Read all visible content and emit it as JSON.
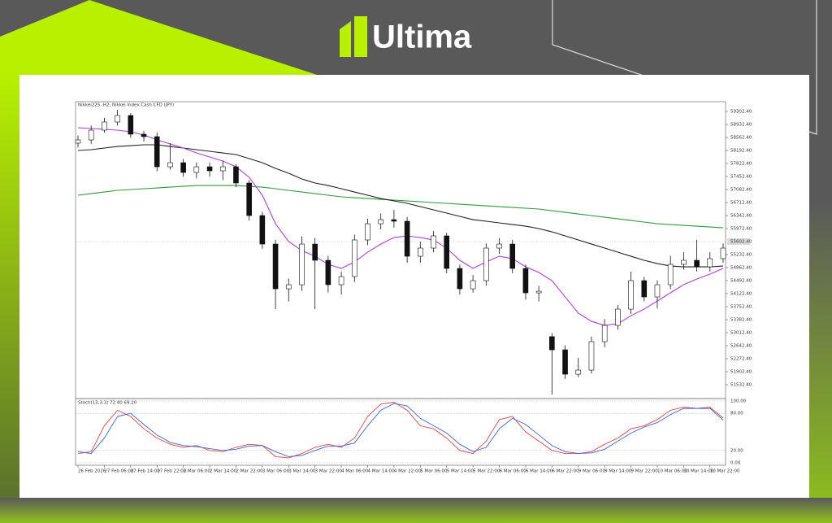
{
  "brand": "Ultima",
  "chart_data": {
    "type": "candlestick",
    "title": "Nikkei225, H2: Nikkei Index Cash CFD (JPY)",
    "categories": [
      "26 Feb 2026",
      null,
      "27 Feb 06:00",
      null,
      "27 Feb 14:00",
      null,
      "27 Feb 22:00",
      null,
      "2 Mar 06:00",
      null,
      "2 Mar 14:00",
      null,
      "2 Mar 22:00",
      null,
      "3 Mar 06:00",
      null,
      "3 Mar 14:00",
      null,
      "3 Mar 22:00",
      null,
      "4 Mar 06:00",
      null,
      "4 Mar 14:00",
      null,
      "4 Mar 22:00",
      null,
      "5 Mar 06:00",
      null,
      "5 Mar 14:00",
      null,
      "5 Mar 22:00",
      null,
      "6 Mar 06:00",
      null,
      "6 Mar 14:00",
      null,
      "6 Mar 22:00",
      null,
      "9 Mar 06:00",
      null,
      "9 Mar 14:00",
      null,
      "9 Mar 22:00",
      null,
      "10 Mar 06:00",
      null,
      "10 Mar 14:00",
      null,
      "10 Mar 22:00",
      null
    ],
    "open": [
      58400,
      58492,
      58770,
      59001,
      59186,
      58654,
      58585,
      57729,
      57845,
      57567,
      57729,
      57614,
      57729,
      57267,
      56342,
      55532,
      54260,
      54376,
      55532,
      55070,
      54376,
      54607,
      55648,
      56110,
      56226,
      56180,
      55185,
      55417,
      55764,
      54839,
      54260,
      54492,
      55417,
      55532,
      54839,
      54145,
      52900,
      52526,
      51832,
      51948,
      52757,
      53220,
      53682,
      54492,
      54029,
      54376,
      54954,
      55070,
      54885,
      55116
    ],
    "high": [
      58620,
      58900,
      59120,
      59348,
      59250,
      58750,
      58700,
      58400,
      57950,
      57850,
      57850,
      57900,
      57800,
      57350,
      56450,
      55650,
      54550,
      55750,
      55700,
      55200,
      54750,
      55800,
      56250,
      56400,
      56500,
      56300,
      55600,
      55900,
      55850,
      54950,
      54650,
      55550,
      55700,
      55650,
      54950,
      54350,
      53000,
      52650,
      52300,
      52900,
      53400,
      53800,
      54750,
      54600,
      54500,
      55200,
      55300,
      55650,
      55300,
      55550
    ],
    "low": [
      58280,
      58380,
      58700,
      58900,
      58550,
      58450,
      57600,
      57650,
      57450,
      57400,
      57450,
      57350,
      57150,
      56200,
      55400,
      53682,
      53900,
      54200,
      53682,
      54150,
      54100,
      54450,
      55500,
      55950,
      56000,
      55000,
      55000,
      55300,
      54700,
      54100,
      54150,
      54350,
      55250,
      54700,
      53950,
      53900,
      51254,
      51700,
      51750,
      51850,
      52600,
      53100,
      53550,
      53900,
      53700,
      54250,
      54800,
      54750,
      54750,
      55000
    ],
    "close": [
      58492,
      58770,
      59001,
      59186,
      58654,
      58585,
      57729,
      57845,
      57567,
      57729,
      57614,
      57729,
      57267,
      56342,
      55532,
      54260,
      54376,
      55532,
      55070,
      54376,
      54607,
      55648,
      56110,
      56226,
      56180,
      55185,
      55417,
      55764,
      54839,
      54260,
      54492,
      55417,
      55532,
      54839,
      54145,
      54191,
      52526,
      51832,
      51948,
      52757,
      53220,
      53682,
      54492,
      54029,
      54376,
      54954,
      55070,
      54885,
      55116,
      55417
    ],
    "up_color": "#ffffff",
    "down_color": "#111111",
    "series": [
      {
        "color": "#b43ee0",
        "values": [
          58839,
          58816,
          58793,
          58770,
          58724,
          58631,
          58492,
          58377,
          58261,
          58122,
          58007,
          57891,
          57729,
          57429,
          56920,
          56110,
          55602,
          55347,
          55185,
          54954,
          54839,
          55024,
          55301,
          55532,
          55717,
          55764,
          55717,
          55648,
          55417,
          55070,
          54839,
          55024,
          55185,
          55116,
          54885,
          54723,
          54492,
          54029,
          53567,
          53335,
          53220,
          53266,
          53497,
          53682,
          53914,
          54145,
          54376,
          54538,
          54677,
          54839
        ]
      },
      {
        "color": "#222222",
        "values": [
          58192,
          58215,
          58261,
          58307,
          58330,
          58354,
          58354,
          58307,
          58261,
          58215,
          58169,
          58122,
          58076,
          57960,
          57845,
          57683,
          57544,
          57382,
          57267,
          57197,
          57105,
          57012,
          56920,
          56827,
          56758,
          56689,
          56596,
          56504,
          56411,
          56319,
          56226,
          56180,
          56134,
          56087,
          56041,
          55972,
          55879,
          55764,
          55648,
          55532,
          55417,
          55301,
          55185,
          55070,
          54977,
          54908,
          54885,
          54885,
          54885,
          54908
        ]
      },
      {
        "color": "#2e9a3c",
        "values": [
          56920,
          56966,
          57012,
          57059,
          57082,
          57105,
          57128,
          57151,
          57174,
          57197,
          57197,
          57197,
          57197,
          57174,
          57151,
          57105,
          57059,
          57012,
          56966,
          56920,
          56874,
          56850,
          56827,
          56804,
          56781,
          56758,
          56735,
          56712,
          56689,
          56665,
          56642,
          56619,
          56596,
          56573,
          56550,
          56527,
          56480,
          56434,
          56388,
          56342,
          56295,
          56249,
          56203,
          56157,
          56110,
          56087,
          56064,
          56041,
          56018,
          55995
        ]
      }
    ],
    "ylim": [
      51186,
      59533
    ],
    "yticks": [
      {
        "value": 59302.4,
        "label": "59302.40"
      },
      {
        "value": 58932.4,
        "label": "58932.40"
      },
      {
        "value": 58562.4,
        "label": "58562.40"
      },
      {
        "value": 58192.4,
        "label": "58192.40"
      },
      {
        "value": 57822.4,
        "label": "57822.40"
      },
      {
        "value": 57452.4,
        "label": "57452.40"
      },
      {
        "value": 57082.4,
        "label": "57082.40"
      },
      {
        "value": 56712.4,
        "label": "56712.40"
      },
      {
        "value": 56342.4,
        "label": "56342.40"
      },
      {
        "value": 55972.4,
        "label": "55972.40"
      },
      {
        "value": 55232.4,
        "label": "55232.40"
      },
      {
        "value": 54862.4,
        "label": "54862.40"
      },
      {
        "value": 54492.4,
        "label": "54492.40"
      },
      {
        "value": 54122.4,
        "label": "54122.40"
      },
      {
        "value": 53752.4,
        "label": "53752.40"
      },
      {
        "value": 53382.4,
        "label": "53382.40"
      },
      {
        "value": 53012.4,
        "label": "53012.40"
      },
      {
        "value": 52642.4,
        "label": "52642.40"
      },
      {
        "value": 52272.4,
        "label": "52272.40"
      },
      {
        "value": 51902.4,
        "label": "51902.40"
      },
      {
        "value": 51532.4,
        "label": "51532.40"
      }
    ],
    "current_price": {
      "value": 55602.4,
      "label": "55602.40"
    },
    "oscillator": {
      "title": "Stoch(13,3,3) 72.40 69.20",
      "series": [
        {
          "color": "#e8463c",
          "axis": "y2",
          "values": [
            15,
            18,
            60,
            85,
            75,
            55,
            40,
            30,
            25,
            28,
            20,
            18,
            25,
            30,
            28,
            10,
            8,
            15,
            25,
            30,
            25,
            40,
            75,
            95,
            98,
            85,
            60,
            55,
            40,
            20,
            15,
            35,
            70,
            75,
            50,
            35,
            20,
            15,
            15,
            18,
            30,
            40,
            55,
            60,
            70,
            85,
            90,
            88,
            90,
            72.4
          ]
        },
        {
          "color": "#3a64e0",
          "axis": "y2",
          "values": [
            18,
            15,
            40,
            75,
            80,
            62,
            45,
            33,
            28,
            26,
            23,
            20,
            22,
            27,
            28,
            18,
            10,
            12,
            20,
            27,
            27,
            32,
            60,
            85,
            96,
            92,
            72,
            60,
            48,
            30,
            18,
            25,
            55,
            72,
            62,
            45,
            28,
            18,
            15,
            16,
            22,
            35,
            48,
            58,
            65,
            78,
            88,
            88,
            88,
            69.2
          ]
        }
      ],
      "y2lim": [
        0,
        100
      ],
      "y2ticks": [
        {
          "value": 100,
          "label": "100.00"
        },
        {
          "value": 80,
          "label": "80.00"
        },
        {
          "value": 20,
          "label": "20.00"
        },
        {
          "value": 0,
          "label": "0.00"
        }
      ]
    }
  }
}
